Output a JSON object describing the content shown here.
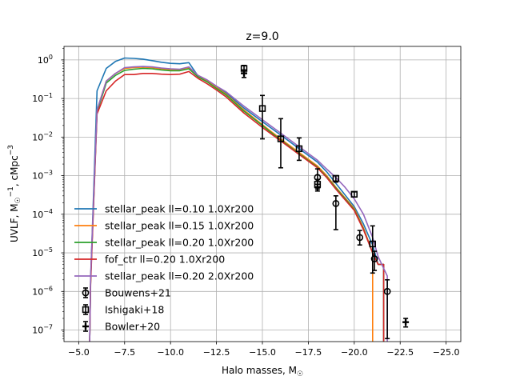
{
  "chart_data": {
    "type": "line",
    "title": "z=9.0",
    "xlabel": "Halo masses, M",
    "xlabel_sub": "☉",
    "ylabel_parts": [
      "UVLF, M",
      "☉",
      "−1",
      ", cMpc",
      "−3"
    ],
    "xlim": [
      -4.2,
      -25.8
    ],
    "ylim_log10": [
      -7.3,
      0.35
    ],
    "x_ticks": [
      -5,
      -7.5,
      -10,
      -12.5,
      -15,
      -17.5,
      -20,
      -22.5,
      -25
    ],
    "x_tick_labels": [
      "−5.0",
      "−7.5",
      "−10.0",
      "−12.5",
      "−15.0",
      "−17.5",
      "−20.0",
      "−22.5",
      "−25.0"
    ],
    "y_ticks_log10": [
      -7,
      -6,
      -5,
      -4,
      -3,
      -2,
      -1,
      0
    ],
    "y_tick_labels": [
      [
        "10",
        "−7"
      ],
      [
        "10",
        "−6"
      ],
      [
        "10",
        "−5"
      ],
      [
        "10",
        "−4"
      ],
      [
        "10",
        "−3"
      ],
      [
        "10",
        "−2"
      ],
      [
        "10",
        "−1"
      ],
      [
        "10",
        "0"
      ]
    ],
    "grid": true,
    "legend_position": "lower-left",
    "series": [
      {
        "name": "stellar_peak ll=0.10 1.0Xr200",
        "color": "#1f77b4",
        "x": [
          -5.6,
          -5.65,
          -6.0,
          -6.5,
          -7.0,
          -7.5,
          -8.0,
          -8.5,
          -9.0,
          -9.5,
          -10.0,
          -10.5,
          -11.0,
          -11.5,
          -12.0,
          -12.5,
          -13.0,
          -14.0,
          -15.0,
          -16.0,
          -17.0,
          -18.0,
          -18.5,
          -19.0,
          -20.0,
          -20.5,
          -21.0,
          -21.3,
          -21.6,
          -21.6
        ],
        "y": [
          -7.3,
          -5.7,
          -0.8,
          -0.22,
          -0.04,
          0.05,
          0.04,
          0.02,
          -0.02,
          -0.06,
          -0.09,
          -0.1,
          -0.07,
          -0.42,
          -0.55,
          -0.7,
          -0.85,
          -1.25,
          -1.6,
          -1.95,
          -2.3,
          -2.65,
          -2.9,
          -3.2,
          -3.8,
          -4.25,
          -4.8,
          -5.3,
          -5.3,
          -7.3
        ]
      },
      {
        "name": "stellar_peak ll=0.15 1.0Xr200",
        "color": "#ff7f0e",
        "x": [
          -5.6,
          -5.65,
          -6.0,
          -6.5,
          -7.0,
          -7.5,
          -8.0,
          -8.5,
          -9.0,
          -9.5,
          -10.0,
          -10.5,
          -11.0,
          -11.5,
          -12.0,
          -12.5,
          -13.0,
          -14.0,
          -15.0,
          -16.0,
          -17.0,
          -18.0,
          -18.5,
          -19.0,
          -20.0,
          -20.5,
          -21.0,
          -21.0
        ],
        "y": [
          -7.3,
          -5.7,
          -1.3,
          -0.55,
          -0.35,
          -0.22,
          -0.2,
          -0.19,
          -0.2,
          -0.23,
          -0.25,
          -0.25,
          -0.2,
          -0.42,
          -0.55,
          -0.72,
          -0.88,
          -1.3,
          -1.68,
          -2.05,
          -2.4,
          -2.75,
          -3.0,
          -3.3,
          -3.85,
          -4.35,
          -5.0,
          -7.3
        ]
      },
      {
        "name": "stellar_peak ll=0.20 1.0Xr200",
        "color": "#2ca02c",
        "x": [
          -5.6,
          -5.65,
          -6.0,
          -6.5,
          -7.0,
          -7.5,
          -8.0,
          -8.5,
          -9.0,
          -9.5,
          -10.0,
          -10.5,
          -11.0,
          -11.5,
          -12.0,
          -12.5,
          -13.0,
          -14.0,
          -15.0,
          -16.0,
          -17.0,
          -18.0,
          -18.5,
          -19.0,
          -20.0,
          -20.5,
          -21.0,
          -21.3,
          -21.6,
          -21.6
        ],
        "y": [
          -7.3,
          -5.7,
          -1.35,
          -0.6,
          -0.4,
          -0.27,
          -0.24,
          -0.22,
          -0.23,
          -0.26,
          -0.28,
          -0.28,
          -0.23,
          -0.44,
          -0.57,
          -0.74,
          -0.9,
          -1.33,
          -1.7,
          -2.08,
          -2.43,
          -2.78,
          -3.03,
          -3.32,
          -3.88,
          -4.38,
          -5.0,
          -5.3,
          -5.3,
          -7.3
        ]
      },
      {
        "name": "fof_ctr ll=0.20 1.0Xr200",
        "color": "#d62728",
        "x": [
          -5.6,
          -5.65,
          -6.0,
          -6.5,
          -7.0,
          -7.5,
          -8.0,
          -8.5,
          -9.0,
          -9.5,
          -10.0,
          -10.5,
          -11.0,
          -11.5,
          -12.0,
          -12.5,
          -13.0,
          -14.0,
          -15.0,
          -16.0,
          -17.0,
          -18.0,
          -18.5,
          -19.0,
          -20.0,
          -20.5,
          -21.0,
          -21.3,
          -21.6,
          -21.6
        ],
        "y": [
          -7.3,
          -5.8,
          -1.4,
          -0.8,
          -0.55,
          -0.38,
          -0.38,
          -0.35,
          -0.35,
          -0.37,
          -0.38,
          -0.37,
          -0.3,
          -0.48,
          -0.62,
          -0.78,
          -0.95,
          -1.38,
          -1.75,
          -2.1,
          -2.45,
          -2.8,
          -3.05,
          -3.35,
          -3.9,
          -4.4,
          -5.0,
          -5.3,
          -5.3,
          -7.3
        ]
      },
      {
        "name": "stellar_peak ll=0.20 2.0Xr200",
        "color": "#9467bd",
        "x": [
          -5.6,
          -5.65,
          -6.0,
          -6.5,
          -7.0,
          -7.5,
          -8.0,
          -8.5,
          -9.0,
          -9.5,
          -10.0,
          -10.5,
          -11.0,
          -11.5,
          -12.0,
          -12.5,
          -13.0,
          -14.0,
          -15.0,
          -16.0,
          -17.0,
          -18.0,
          -18.5,
          -19.0,
          -19.5,
          -20.0,
          -20.5,
          -21.0,
          -21.3,
          -21.8,
          -21.8
        ],
        "y": [
          -7.3,
          -5.6,
          -1.3,
          -0.55,
          -0.35,
          -0.2,
          -0.18,
          -0.17,
          -0.18,
          -0.21,
          -0.23,
          -0.24,
          -0.18,
          -0.4,
          -0.52,
          -0.68,
          -0.82,
          -1.2,
          -1.55,
          -1.9,
          -2.25,
          -2.6,
          -2.83,
          -3.05,
          -3.3,
          -3.6,
          -4.0,
          -4.6,
          -5.1,
          -5.6,
          -7.3
        ]
      }
    ],
    "observations": [
      {
        "name": "Bouwens+21",
        "marker": "circle",
        "points": [
          {
            "x": -18.0,
            "y": 0.0009,
            "ylo": 0.0005,
            "yhi": 0.0015
          },
          {
            "x": -19.0,
            "y": 0.00019,
            "ylo": 4e-05,
            "yhi": 0.0003
          },
          {
            "x": -20.3,
            "y": 2.5e-05,
            "ylo": 1.6e-05,
            "yhi": 3.8e-05
          },
          {
            "x": -21.1,
            "y": 7e-06,
            "ylo": 3.5e-06,
            "yhi": 1.1e-05
          },
          {
            "x": -21.8,
            "y": 1e-06,
            "ylo": 6e-08,
            "yhi": 2e-06
          }
        ]
      },
      {
        "name": "Ishigaki+18",
        "marker": "square",
        "points": [
          {
            "x": -14.0,
            "y": 0.6,
            "ylo": 0.45,
            "yhi": 0.72
          },
          {
            "x": -15.0,
            "y": 0.055,
            "ylo": 0.009,
            "yhi": 0.12
          },
          {
            "x": -16.0,
            "y": 0.009,
            "ylo": 0.0016,
            "yhi": 0.03
          },
          {
            "x": -17.0,
            "y": 0.005,
            "ylo": 0.0025,
            "yhi": 0.0095
          },
          {
            "x": -18.0,
            "y": 0.0006,
            "ylo": 0.00045,
            "yhi": 0.0008
          },
          {
            "x": -19.0,
            "y": 0.00085,
            "ylo": 0.00068,
            "yhi": 0.001
          },
          {
            "x": -20.0,
            "y": 0.00033,
            "ylo": 0.00028,
            "yhi": 0.00038
          },
          {
            "x": -21.0,
            "y": 1.7e-05,
            "ylo": 3e-06,
            "yhi": 5e-05
          }
        ]
      },
      {
        "name": "Bowler+20",
        "marker": "plus",
        "points": [
          {
            "x": -14.0,
            "y": 0.45,
            "ylo": 0.35,
            "yhi": 0.55
          },
          {
            "x": -18.0,
            "y": 0.0005,
            "ylo": 0.0004,
            "yhi": 0.0006
          },
          {
            "x": -22.8,
            "y": 1.6e-07,
            "ylo": 1.2e-07,
            "yhi": 2e-07
          }
        ]
      }
    ]
  }
}
